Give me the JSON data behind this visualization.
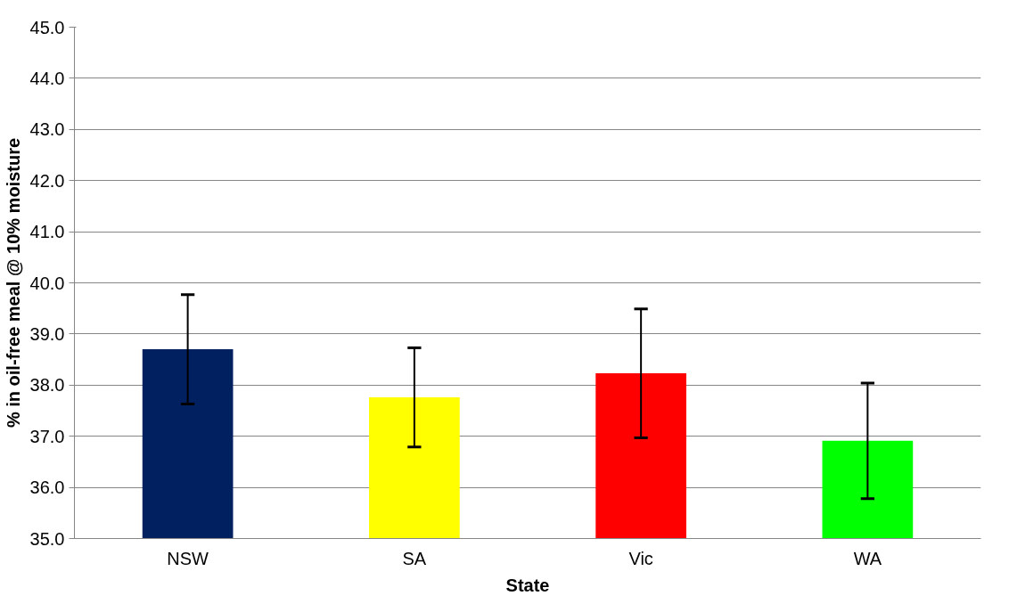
{
  "chart_data": {
    "type": "bar",
    "xlabel": "State",
    "ylabel": "% in oil-free meal @ 10% moisture",
    "categories": [
      "NSW",
      "SA",
      "Vic",
      "WA"
    ],
    "values": [
      38.7,
      37.76,
      38.23,
      36.91
    ],
    "colors": [
      "#002060",
      "#ffff00",
      "#ff0000",
      "#00ff00"
    ],
    "errors": [
      1.07,
      0.97,
      1.26,
      1.13
    ],
    "ylim": [
      35,
      45
    ],
    "yticks": [
      {
        "value": 35,
        "label": "35.0"
      },
      {
        "value": 36,
        "label": "36.0"
      },
      {
        "value": 37,
        "label": "37.0"
      },
      {
        "value": 38,
        "label": "38.0"
      },
      {
        "value": 39,
        "label": "39.0"
      },
      {
        "value": 40,
        "label": "40.0"
      },
      {
        "value": 41,
        "label": "41.0"
      },
      {
        "value": 42,
        "label": "42.0"
      },
      {
        "value": 43,
        "label": "43.0"
      },
      {
        "value": 44,
        "label": "44.0"
      },
      {
        "value": 45,
        "label": "45.0"
      }
    ],
    "grid": "y"
  }
}
